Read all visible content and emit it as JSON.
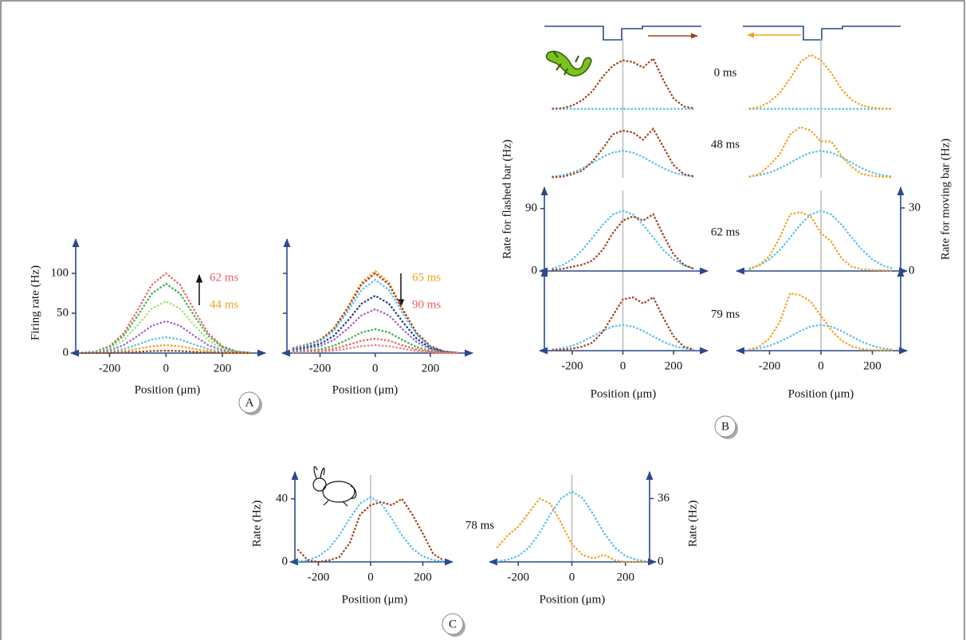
{
  "chart_data": [
    {
      "type": "line",
      "xlabel": "Position (μm)",
      "ylabel": "Firing rate (Hz)",
      "panel_label": "A",
      "x": [
        -300,
        -250,
        -200,
        -150,
        -100,
        -50,
        0,
        50,
        100,
        150,
        200,
        250,
        300
      ],
      "xlim": [
        -320,
        330
      ],
      "xticks": [
        -200,
        0,
        200
      ],
      "ylim": [
        0,
        125
      ],
      "yticks": [
        0,
        50,
        100
      ],
      "xaxis": true,
      "yaxis": "left",
      "annotations": [
        {
          "text": "62 ms",
          "color": "#f06060"
        },
        {
          "text": "44 ms",
          "color": "#f5a020"
        }
      ],
      "series": [
        {
          "color": "#f06060",
          "values": [
            0.4,
            2.1,
            8.5,
            24.9,
            54,
            85.7,
            100,
            85.7,
            54,
            24.9,
            8.5,
            2.1,
            0.4
          ]
        },
        {
          "color": "#38b048",
          "values": [
            0.3,
            1.8,
            7.4,
            21.7,
            47,
            74.6,
            87,
            74.6,
            47,
            21.7,
            7.4,
            1.8,
            0.3
          ]
        },
        {
          "color": "#9ee070",
          "values": [
            0.3,
            1.4,
            5.5,
            16.2,
            35.1,
            55.7,
            65,
            55.7,
            35.1,
            16.2,
            5.5,
            1.4,
            0.3
          ]
        },
        {
          "color": "#9a60d0",
          "values": [
            0.2,
            0.8,
            3.4,
            10,
            21.6,
            34.3,
            40,
            34.3,
            21.6,
            10,
            3.4,
            0.8,
            0.2
          ]
        },
        {
          "color": "#55c0ec",
          "values": [
            0.1,
            0.4,
            1.7,
            5,
            10.8,
            17.1,
            20,
            17.1,
            10.8,
            5,
            1.7,
            0.4,
            0.1
          ]
        },
        {
          "color": "#f5a020",
          "values": [
            0,
            0.2,
            0.9,
            2.5,
            5.4,
            8.6,
            10,
            8.6,
            5.4,
            2.5,
            0.9,
            0.2,
            0
          ]
        },
        {
          "color": "#a0401a",
          "values": [
            0,
            0.1,
            0.3,
            0.7,
            1.6,
            2.6,
            3,
            2.6,
            1.6,
            0.7,
            0.3,
            0.1,
            0
          ]
        }
      ]
    },
    {
      "type": "line",
      "xlabel": "Position (μm)",
      "x": [
        -300,
        -250,
        -200,
        -150,
        -100,
        -50,
        0,
        50,
        100,
        150,
        200,
        250,
        300
      ],
      "xlim": [
        -320,
        330
      ],
      "xticks": [
        -200,
        0,
        200
      ],
      "ylim": [
        0,
        125
      ],
      "yticks": [
        0,
        50,
        100
      ],
      "ytick_labels": false,
      "xaxis": true,
      "yaxis": "left",
      "annotations": [
        {
          "text": "65 ms",
          "color": "#f5a020"
        },
        {
          "text": "90 ms",
          "color": "#f06060"
        }
      ],
      "series": [
        {
          "color": "#f5a020",
          "values": [
            6.2,
            10.3,
            16.5,
            30.9,
            57.7,
            88.6,
            103,
            88.6,
            55.6,
            25.8,
            8.8,
            2.1,
            0.4
          ]
        },
        {
          "color": "#a0401a",
          "values": [
            6,
            10,
            16,
            30,
            56,
            86,
            100,
            86,
            54,
            25,
            8.5,
            2,
            0.4
          ]
        },
        {
          "color": "#55c0ec",
          "values": [
            5.5,
            9.2,
            14.7,
            27.6,
            51.5,
            79.1,
            92,
            79.1,
            49.7,
            23,
            7.8,
            1.8,
            0.4
          ]
        },
        {
          "color": "#203a80",
          "values": [
            4.3,
            7.2,
            11.5,
            21.6,
            40.3,
            61.9,
            72,
            61.9,
            38.9,
            18,
            6.1,
            1.4,
            0.3
          ]
        },
        {
          "color": "#9a60d0",
          "values": [
            3.3,
            5.5,
            8.8,
            16.5,
            30.8,
            47.3,
            55,
            47.3,
            29.7,
            13.8,
            4.7,
            1.1,
            0.2
          ]
        },
        {
          "color": "#38b048",
          "values": [
            1.8,
            3,
            4.8,
            9,
            16.8,
            25.8,
            30,
            25.8,
            16.2,
            7.5,
            2.6,
            0.6,
            0.1
          ]
        },
        {
          "color": "#f06060",
          "values": [
            1.1,
            1.8,
            2.9,
            5.4,
            10.1,
            15.5,
            18,
            15.5,
            9.7,
            4.5,
            1.5,
            0.4,
            0.1
          ]
        },
        {
          "color": "#f08080",
          "values": [
            0.6,
            1,
            1.6,
            3,
            5.6,
            8.6,
            10,
            8.6,
            5.4,
            2.5,
            0.9,
            0.2,
            0
          ]
        }
      ]
    },
    {
      "type": "line",
      "x": [
        -280,
        -240,
        -200,
        -160,
        -120,
        -80,
        -40,
        0,
        40,
        80,
        120,
        160,
        200,
        240,
        280
      ],
      "xlim": [
        -310,
        310
      ],
      "ylim": [
        0,
        100
      ],
      "y2lim": [
        0,
        33
      ],
      "vline": 0,
      "xaxis": false,
      "annotations": [
        {
          "text": "0 ms"
        }
      ],
      "series": [
        {
          "color": "#55c0ec",
          "values": [
            0.5,
            0.5,
            0.5,
            0.5,
            0.5,
            0.5,
            0.5,
            0.5,
            0.5,
            0.5,
            0.5,
            0.5,
            0.5,
            0.5,
            0.5
          ]
        },
        {
          "color": "#a0401a",
          "axis": "y2",
          "values": [
            0.3,
            0.5,
            2,
            5,
            10,
            18,
            24,
            27,
            26,
            23,
            28,
            16,
            6,
            1.5,
            0.5
          ]
        }
      ]
    },
    {
      "type": "line",
      "x": [
        -280,
        -240,
        -200,
        -160,
        -120,
        -80,
        -40,
        0,
        40,
        80,
        120,
        160,
        200,
        240,
        280
      ],
      "xlim": [
        -310,
        310
      ],
      "ylim": [
        0,
        100
      ],
      "y2lim": [
        0,
        33
      ],
      "vline": 0,
      "xaxis": false,
      "series": [
        {
          "color": "#55c0ec",
          "values": [
            0.5,
            0.5,
            0.5,
            0.5,
            0.5,
            0.5,
            0.5,
            0.5,
            0.5,
            0.5,
            0.5,
            0.5,
            0.5,
            0.5,
            0.5
          ]
        },
        {
          "color": "#f5a020",
          "axis": "y2",
          "values": [
            0.3,
            1,
            4,
            9,
            17,
            26,
            30,
            27,
            20,
            11,
            5,
            2,
            0.8,
            0.3,
            0.2
          ]
        }
      ]
    },
    {
      "type": "line",
      "x": [
        -280,
        -240,
        -200,
        -160,
        -120,
        -80,
        -40,
        0,
        40,
        80,
        120,
        160,
        200,
        240,
        280
      ],
      "xlim": [
        -310,
        310
      ],
      "ylim": [
        0,
        100
      ],
      "y2lim": [
        0,
        33
      ],
      "vline": 0,
      "xaxis": false,
      "annotations": [
        {
          "text": "48 ms"
        }
      ],
      "series": [
        {
          "color": "#55c0ec",
          "values": [
            1.8,
            4.2,
            8.6,
            15.7,
            24.8,
            34.6,
            42.1,
            45,
            42.1,
            34.6,
            24.8,
            15.7,
            8.6,
            4.2,
            1.8
          ]
        },
        {
          "color": "#a0401a",
          "axis": "y2",
          "values": [
            0.3,
            0.5,
            2,
            4,
            9,
            16,
            24,
            26,
            25,
            21,
            27,
            17,
            7,
            2,
            0.8
          ]
        }
      ]
    },
    {
      "type": "line",
      "x": [
        -280,
        -240,
        -200,
        -160,
        -120,
        -80,
        -40,
        0,
        40,
        80,
        120,
        160,
        200,
        240,
        280
      ],
      "xlim": [
        -310,
        310
      ],
      "ylim": [
        0,
        100
      ],
      "y2lim": [
        0,
        33
      ],
      "vline": 0,
      "xaxis": false,
      "series": [
        {
          "color": "#55c0ec",
          "values": [
            1.8,
            4.2,
            8.6,
            15.7,
            24.8,
            34.6,
            42.1,
            45,
            42.1,
            34.6,
            24.8,
            15.7,
            8.6,
            4.2,
            1.8
          ]
        },
        {
          "color": "#f5a020",
          "axis": "y2",
          "values": [
            0.5,
            2,
            7,
            13,
            24,
            28,
            26,
            20,
            20,
            12,
            6,
            2,
            1,
            0.5,
            0.3
          ]
        }
      ]
    },
    {
      "type": "line",
      "x": [
        -280,
        -240,
        -200,
        -160,
        -120,
        -80,
        -40,
        0,
        40,
        80,
        120,
        160,
        200,
        240,
        280
      ],
      "xlim": [
        -310,
        310
      ],
      "ylim": [
        0,
        100
      ],
      "yticks": [
        0,
        90
      ],
      "y2lim": [
        0,
        33
      ],
      "vline": 0,
      "xaxis": true,
      "yaxis": "left",
      "ylabel": "Rate for flashed bar (Hz)",
      "annotations": [
        {
          "text": "62 ms"
        }
      ],
      "series": [
        {
          "color": "#55c0ec",
          "values": [
            3.4,
            8.1,
            16.7,
            30.3,
            48,
            66.8,
            81.4,
            87,
            81.4,
            66.8,
            48,
            30.3,
            16.7,
            8.1,
            3.4
          ]
        },
        {
          "color": "#a0401a",
          "axis": "y2",
          "values": [
            0.5,
            1,
            2,
            3,
            5,
            10,
            18,
            24,
            26,
            24,
            27,
            17,
            8,
            3,
            1
          ]
        }
      ]
    },
    {
      "type": "line",
      "x": [
        -280,
        -240,
        -200,
        -160,
        -120,
        -80,
        -40,
        0,
        40,
        80,
        120,
        160,
        200,
        240,
        280
      ],
      "xlim": [
        -310,
        310
      ],
      "ylim": [
        0,
        100
      ],
      "y2lim": [
        0,
        33
      ],
      "y2ticks": [
        0,
        30
      ],
      "vline": 0,
      "xaxis": true,
      "yaxis": "right",
      "y2label": "Rate for moving bar (Hz)",
      "series": [
        {
          "color": "#55c0ec",
          "values": [
            3.4,
            8.1,
            16.7,
            30.3,
            48,
            66.8,
            81.4,
            87,
            81.4,
            66.8,
            48,
            30.3,
            16.7,
            8.1,
            3.4
          ]
        },
        {
          "color": "#f5a020",
          "axis": "y2",
          "values": [
            0.5,
            3,
            7,
            16,
            27,
            28,
            26,
            18,
            14,
            6,
            2,
            0.8,
            0.5,
            0.3,
            0.2
          ]
        }
      ]
    },
    {
      "type": "line",
      "x": [
        -280,
        -240,
        -200,
        -160,
        -120,
        -80,
        -40,
        0,
        40,
        80,
        120,
        160,
        200,
        240,
        280
      ],
      "xlim": [
        -310,
        310
      ],
      "xticks": [
        -200,
        0,
        200
      ],
      "ylim": [
        0,
        100
      ],
      "y2lim": [
        0,
        33
      ],
      "vline": 0,
      "xaxis": true,
      "yaxis": "left",
      "xlabel": "Position (μm)",
      "annotations": [
        {
          "text": "79 ms"
        }
      ],
      "series": [
        {
          "color": "#55c0ec",
          "values": [
            1.5,
            3.5,
            7.3,
            13.2,
            21,
            29.2,
            35.6,
            38,
            35.6,
            29.2,
            21,
            13.2,
            7.3,
            3.5,
            1.5
          ]
        },
        {
          "color": "#a0401a",
          "axis": "y2",
          "values": [
            0.3,
            0.5,
            1,
            2,
            4,
            9,
            17,
            25,
            26,
            23,
            26,
            16,
            7,
            2,
            0.5
          ]
        }
      ]
    },
    {
      "type": "line",
      "x": [
        -280,
        -240,
        -200,
        -160,
        -120,
        -80,
        -40,
        0,
        40,
        80,
        120,
        160,
        200,
        240,
        280
      ],
      "xlim": [
        -310,
        310
      ],
      "xticks": [
        -200,
        0,
        200
      ],
      "ylim": [
        0,
        100
      ],
      "y2lim": [
        0,
        33
      ],
      "vline": 0,
      "xaxis": true,
      "yaxis": "right",
      "xlabel": "Position (μm)",
      "panel_label": "B",
      "series": [
        {
          "color": "#55c0ec",
          "values": [
            1.5,
            3.5,
            7.3,
            13.2,
            21,
            29.2,
            35.6,
            38,
            35.6,
            29.2,
            21,
            13.2,
            7.3,
            3.5,
            1.5
          ]
        },
        {
          "color": "#f5a020",
          "axis": "y2",
          "values": [
            0.5,
            2,
            6,
            14,
            28,
            27,
            24,
            17,
            10,
            5,
            2,
            0.8,
            0.3,
            0.2,
            0.2
          ]
        }
      ]
    },
    {
      "type": "line",
      "x": [
        -280,
        -240,
        -200,
        -160,
        -120,
        -80,
        -40,
        0,
        40,
        80,
        120,
        160,
        200,
        240,
        280
      ],
      "xlim": [
        -290,
        290
      ],
      "xticks": [
        -200,
        0,
        200
      ],
      "ylim": [
        0,
        48
      ],
      "yticks": [
        0,
        40
      ],
      "vline": 0,
      "xaxis": true,
      "yaxis": "left",
      "xlabel": "Position (μm)",
      "ylabel": "Rate (Hz)",
      "series": [
        {
          "color": "#55c0ec",
          "values": [
            0.3,
            1.2,
            3.5,
            8.4,
            16.9,
            27.6,
            37.1,
            41,
            37.1,
            27.6,
            16.9,
            8.4,
            3.5,
            1.2,
            0.3
          ]
        },
        {
          "color": "#a0401a",
          "values": [
            8,
            1,
            0,
            1,
            3,
            12,
            30,
            36,
            38,
            36,
            40,
            30,
            18,
            5,
            1
          ]
        }
      ]
    },
    {
      "type": "line",
      "x": [
        -280,
        -240,
        -200,
        -160,
        -120,
        -80,
        -40,
        0,
        40,
        80,
        120,
        160,
        200,
        240,
        280
      ],
      "xlim": [
        -290,
        290
      ],
      "xticks": [
        -200,
        0,
        200
      ],
      "y2lim": [
        0,
        43
      ],
      "y2ticks": [
        0,
        36
      ],
      "vline": 0,
      "xaxis": true,
      "yaxis": "right",
      "xlabel": "Position (μm)",
      "y2label": "Rate (Hz)",
      "panel_label": "C",
      "annotations": [
        {
          "text": "78 ms"
        }
      ],
      "series": [
        {
          "color": "#55c0ec",
          "axis": "y2",
          "values": [
            0.3,
            1.2,
            3.4,
            8.2,
            16.5,
            27,
            36.2,
            40,
            36.2,
            27,
            16.5,
            8.2,
            3.4,
            1.2,
            0.3
          ]
        },
        {
          "color": "#f5a020",
          "axis": "y2",
          "values": [
            8,
            15,
            20,
            28,
            36,
            33,
            22,
            10,
            4,
            2,
            4,
            1,
            0,
            0,
            0
          ]
        }
      ]
    }
  ]
}
